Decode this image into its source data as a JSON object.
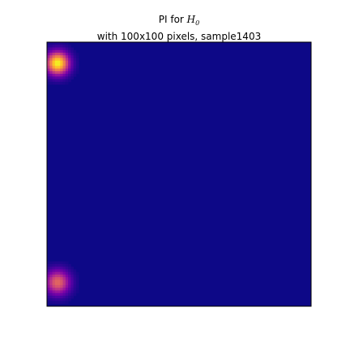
{
  "chart_data": {
    "type": "heatmap",
    "title": {
      "line1_prefix": "PI for ",
      "line1_italic": "H",
      "line1_subscript": "0",
      "line2": "with 100x100 pixels, sample1403"
    },
    "grid_size": [
      100,
      100
    ],
    "colormap": "plasma",
    "axes_visible": false,
    "background_value": 0.0,
    "peaks": [
      {
        "col": 4.0,
        "row": 8.0,
        "sigma": 3.0,
        "intensity": 1.0
      },
      {
        "col": 4.0,
        "row": 91.0,
        "sigma": 3.2,
        "intensity": 0.62
      }
    ],
    "colors": {
      "background": "#0d0887",
      "frame": "#000000"
    }
  }
}
